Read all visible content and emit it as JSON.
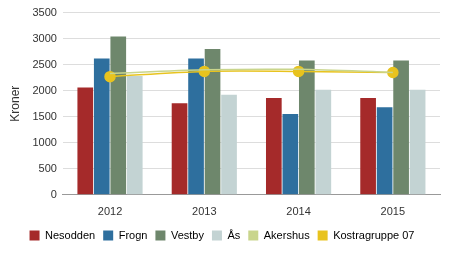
{
  "chart_data": {
    "type": "bar",
    "y_label": "Kroner",
    "categories": [
      "2012",
      "2013",
      "2014",
      "2015"
    ],
    "series": [
      {
        "name": "Nesodden",
        "color": "#a52a2a",
        "values": [
          2060,
          1760,
          1860,
          1860
        ]
      },
      {
        "name": "Frogn",
        "color": "#2e6f9e",
        "values": [
          2620,
          2620,
          1550,
          1680
        ]
      },
      {
        "name": "Vestby",
        "color": "#6e876c",
        "values": [
          3040,
          2800,
          2580,
          2580
        ]
      },
      {
        "name": "Ås",
        "color": "#c3d3d3",
        "values": [
          2280,
          1920,
          2020,
          2020
        ]
      },
      {
        "name": "Akershus",
        "color": "#c9d58c",
        "type": "line",
        "marker": "none",
        "values": [
          2330,
          2400,
          2410,
          2350
        ]
      },
      {
        "name": "Kostragruppe 07",
        "color": "#e8c31e",
        "type": "line",
        "marker": "circle",
        "values": [
          2270,
          2370,
          2370,
          2350
        ]
      }
    ],
    "ylim": [
      0,
      3500
    ],
    "yticks": [
      0,
      500,
      1000,
      1500,
      2000,
      2500,
      3000,
      3500
    ],
    "grid": true,
    "legend": "bottom"
  }
}
